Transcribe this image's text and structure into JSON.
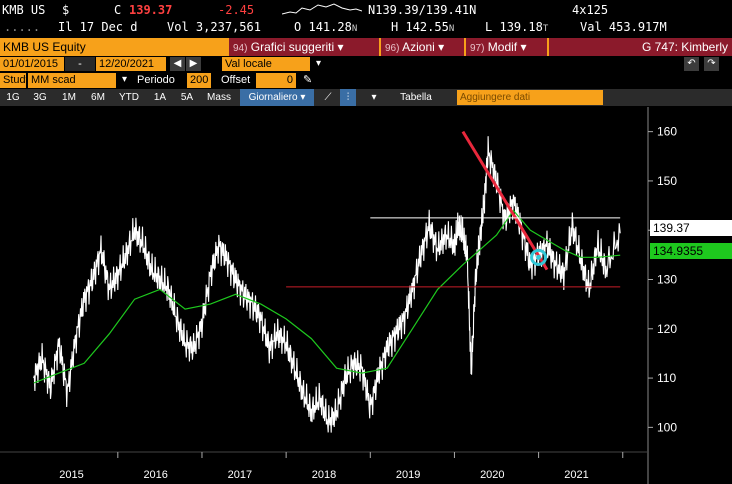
{
  "header": {
    "ticker": "KMB US",
    "currency": "$",
    "c_label": "C",
    "last_price": "139.37",
    "change": "-2.45",
    "bid_ask": "N139.39/139.41N",
    "size": "4x125"
  },
  "quote": {
    "dots": ".....",
    "date_label": "Il 17 Dec d",
    "vol_label": "Vol",
    "volume": "3,237,561",
    "open_label": "O",
    "open": "141.28",
    "open_src": "N",
    "high_label": "H",
    "high": "142.55",
    "high_src": "N",
    "low_label": "L",
    "low": "139.18",
    "low_src": "T",
    "val_label": "Val",
    "value": "453.917M"
  },
  "titlebar": {
    "title": "KMB US Equity",
    "menus": [
      {
        "num": "94)",
        "label": "Grafici suggeriti"
      },
      {
        "num": "96)",
        "label": "Azioni"
      },
      {
        "num": "97)",
        "label": "Modif"
      }
    ],
    "right": "G 747: Kimberly"
  },
  "range": {
    "start": "01/01/2015",
    "end": "12/20/2021",
    "currency_mode": "Val locale"
  },
  "study": {
    "label": "Study",
    "value": "MM scad",
    "period_label": "Periodo",
    "period": "200",
    "offset_label": "Offset",
    "offset": "0"
  },
  "toolbar": {
    "timeframes": [
      "1G",
      "3G",
      "1M",
      "6M",
      "YTD",
      "1A",
      "5A",
      "Mass"
    ],
    "active": "Giornaliero",
    "table": "Tabella",
    "add_data": "Aggiungere dati"
  },
  "colors": {
    "price_line": "#ffffff",
    "moving_average": "#1ec81e",
    "trend_line": "#e8283c",
    "support_line": "#c81e28",
    "marker": "#34c8d8",
    "accent": "#f7a11a",
    "menu_bg": "#8b1a2b"
  },
  "chart_data": {
    "type": "line",
    "x_ticks": [
      "2015",
      "2016",
      "2017",
      "2018",
      "2019",
      "2020",
      "2021"
    ],
    "y_ticks": [
      100,
      110,
      120,
      130,
      140,
      150,
      160
    ],
    "ylim": [
      95,
      165
    ],
    "last_price_label": "139.37",
    "ma_label": "134.9355",
    "series": [
      {
        "kind": "price",
        "x": [
          2015.0,
          2015.1,
          2015.2,
          2015.3,
          2015.4,
          2015.5,
          2015.6,
          2015.7,
          2015.8,
          2015.9,
          2016.0,
          2016.1,
          2016.2,
          2016.3,
          2016.4,
          2016.5,
          2016.6,
          2016.7,
          2016.8,
          2016.9,
          2017.0,
          2017.1,
          2017.2,
          2017.3,
          2017.4,
          2017.5,
          2017.6,
          2017.7,
          2017.8,
          2017.9,
          2018.0,
          2018.1,
          2018.2,
          2018.3,
          2018.4,
          2018.5,
          2018.6,
          2018.7,
          2018.8,
          2018.9,
          2019.0,
          2019.1,
          2019.2,
          2019.3,
          2019.4,
          2019.5,
          2019.6,
          2019.7,
          2019.8,
          2019.9,
          2020.0,
          2020.05,
          2020.1,
          2020.15,
          2020.2,
          2020.25,
          2020.3,
          2020.35,
          2020.4,
          2020.5,
          2020.6,
          2020.7,
          2020.8,
          2020.9,
          2021.0,
          2021.1,
          2021.2,
          2021.3,
          2021.4,
          2021.5,
          2021.6,
          2021.7,
          2021.8,
          2021.97
        ],
        "y": [
          110,
          114,
          108,
          117,
          107,
          118,
          126,
          130,
          136,
          128,
          131,
          135,
          140,
          137,
          132,
          130,
          128,
          122,
          117,
          116,
          121,
          131,
          137,
          134,
          130,
          127,
          125,
          122,
          116,
          119,
          117,
          112,
          107,
          103,
          106,
          101,
          103,
          110,
          113,
          112,
          104,
          111,
          116,
          119,
          122,
          128,
          135,
          141,
          136,
          139,
          137,
          141,
          139,
          135,
          111,
          130,
          138,
          145,
          156,
          150,
          142,
          146,
          140,
          133,
          135,
          137,
          133,
          131,
          141,
          134,
          128,
          137,
          132,
          139.37
        ]
      },
      {
        "kind": "moving_average",
        "x": [
          2015.0,
          2015.3,
          2015.6,
          2015.9,
          2016.2,
          2016.5,
          2016.8,
          2017.1,
          2017.4,
          2017.7,
          2018.0,
          2018.3,
          2018.6,
          2018.9,
          2019.2,
          2019.5,
          2019.8,
          2020.1,
          2020.3,
          2020.5,
          2020.7,
          2020.9,
          2021.1,
          2021.3,
          2021.5,
          2021.7,
          2021.97
        ],
        "y": [
          109,
          111,
          113,
          119,
          126,
          128,
          124,
          125,
          127,
          125,
          122,
          118,
          112,
          111,
          112,
          120,
          128,
          133,
          136,
          139,
          144,
          140,
          138,
          136,
          134.5,
          134.5,
          134.9355
        ]
      },
      {
        "kind": "trend_line",
        "x": [
          2020.1,
          2021.1
        ],
        "y": [
          160,
          132
        ]
      },
      {
        "kind": "support_line",
        "x": [
          2018.0,
          2021.97
        ],
        "y": [
          128.5,
          128.5
        ]
      },
      {
        "kind": "resistance_line",
        "x": [
          2019.0,
          2021.97
        ],
        "y": [
          142.5,
          142.5
        ]
      }
    ],
    "marker_point": {
      "x": 2021.0,
      "y": 134.5
    }
  }
}
